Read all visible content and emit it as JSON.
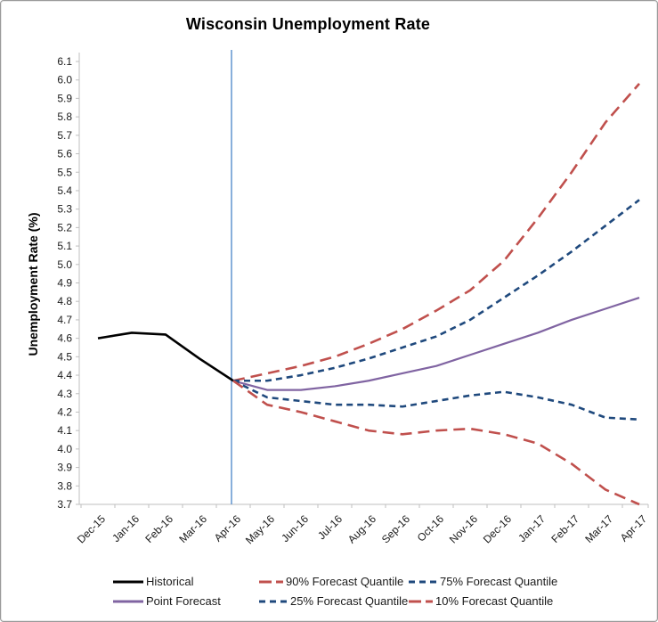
{
  "chart_data": {
    "type": "line",
    "title": "Wisconsin Unemployment Rate",
    "ylabel": "Unemployment Rate (%)",
    "xlabel": "",
    "ylim": [
      3.7,
      6.1
    ],
    "ytick_step": 0.1,
    "grid": false,
    "legend_position": "bottom",
    "categories": [
      "Dec-15",
      "Jan-16",
      "Feb-16",
      "Mar-16",
      "Apr-16",
      "May-16",
      "Jun-16",
      "Jul-16",
      "Aug-16",
      "Sep-16",
      "Oct-16",
      "Nov-16",
      "Dec-16",
      "Jan-17",
      "Feb-17",
      "Mar-17",
      "Apr-17"
    ],
    "forecast_start": {
      "category": "Apr-16",
      "vline_color": "#6B9BD2"
    },
    "axis_color": "#BFBFBF",
    "label_color": "#1a1a1a",
    "series": [
      {
        "name": "Historical",
        "color": "#000000",
        "style": "solid",
        "width": 2.6,
        "values": [
          4.6,
          4.63,
          4.62,
          4.49,
          4.37,
          null,
          null,
          null,
          null,
          null,
          null,
          null,
          null,
          null,
          null,
          null,
          null
        ]
      },
      {
        "name": "Point Forecast",
        "color": "#8064A2",
        "style": "solid",
        "width": 2.2,
        "values": [
          null,
          null,
          null,
          null,
          4.37,
          4.32,
          4.32,
          4.34,
          4.37,
          4.41,
          4.45,
          4.51,
          4.57,
          4.63,
          4.7,
          4.76,
          4.82
        ]
      },
      {
        "name": "90% Forecast Quantile",
        "color": "#C0504D",
        "style": "long-dash",
        "width": 2.6,
        "values": [
          null,
          null,
          null,
          null,
          4.37,
          4.41,
          4.45,
          4.5,
          4.57,
          4.65,
          4.75,
          4.86,
          5.02,
          5.25,
          5.5,
          5.77,
          5.98
        ]
      },
      {
        "name": "75% Forecast Quantile",
        "color": "#1F497D",
        "style": "dash",
        "width": 2.6,
        "values": [
          null,
          null,
          null,
          null,
          4.37,
          4.37,
          4.4,
          4.44,
          4.49,
          4.55,
          4.61,
          4.7,
          4.82,
          4.94,
          5.07,
          5.21,
          5.35
        ]
      },
      {
        "name": "25% Forecast Quantile",
        "color": "#1F497D",
        "style": "dash",
        "width": 2.6,
        "values": [
          null,
          null,
          null,
          null,
          4.37,
          4.28,
          4.26,
          4.24,
          4.24,
          4.23,
          4.26,
          4.29,
          4.31,
          4.28,
          4.24,
          4.17,
          4.16
        ]
      },
      {
        "name": "10% Forecast Quantile",
        "color": "#C0504D",
        "style": "long-dash",
        "width": 2.6,
        "values": [
          null,
          null,
          null,
          null,
          4.37,
          4.24,
          4.2,
          4.15,
          4.1,
          4.08,
          4.1,
          4.11,
          4.08,
          4.03,
          3.92,
          3.78,
          3.7
        ]
      }
    ],
    "legend_order": [
      0,
      2,
      3,
      1,
      4,
      5
    ]
  }
}
